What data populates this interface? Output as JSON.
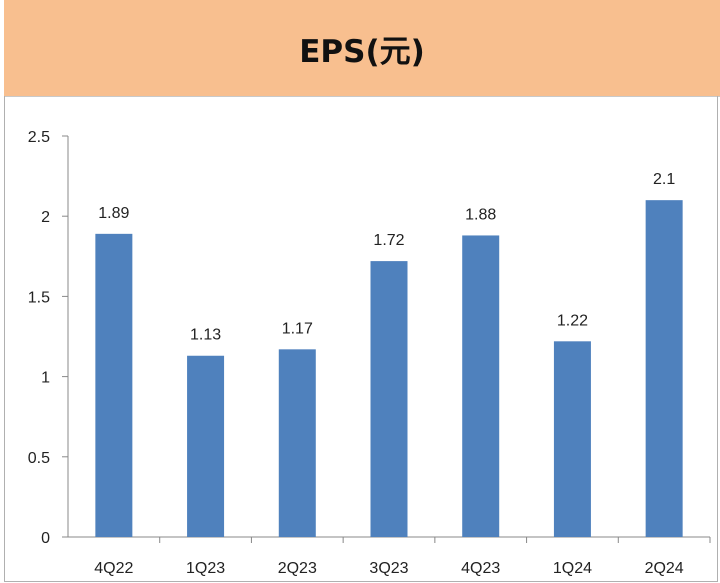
{
  "chart_data": {
    "type": "bar",
    "title": "EPS(元)",
    "categories": [
      "4Q22",
      "1Q23",
      "2Q23",
      "3Q23",
      "4Q23",
      "1Q24",
      "2Q24"
    ],
    "values": [
      1.89,
      1.13,
      1.17,
      1.72,
      1.88,
      1.22,
      2.1
    ],
    "data_labels": [
      "1.89",
      "1.13",
      "1.17",
      "1.72",
      "1.88",
      "1.22",
      "2.1"
    ],
    "y_ticks": [
      "0",
      "0.5",
      "1",
      "1.5",
      "2",
      "2.5"
    ],
    "ylim": [
      0,
      2.5
    ],
    "xlabel": "",
    "ylabel": "",
    "grid": false,
    "legend": "none",
    "bar_color": "#4f81bd"
  }
}
